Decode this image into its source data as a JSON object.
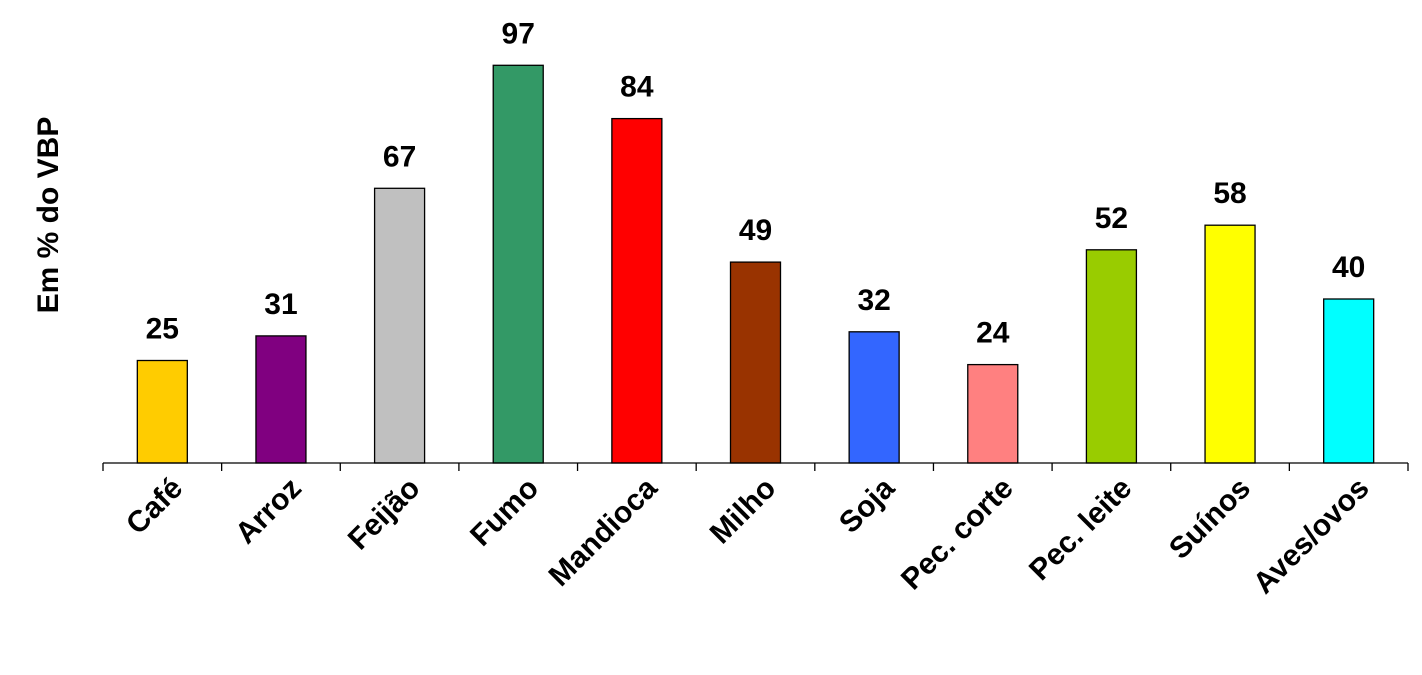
{
  "chart_data": {
    "type": "bar",
    "ylabel": "Em % do VBP",
    "xlabel": "",
    "title": "",
    "categories": [
      "Café",
      "Arroz",
      "Feijão",
      "Fumo",
      "Mandioca",
      "Milho",
      "Soja",
      "Pec. corte",
      "Pec. leite",
      "Suínos",
      "Aves/ovos"
    ],
    "values": [
      25,
      31,
      67,
      97,
      84,
      49,
      32,
      24,
      52,
      58,
      40
    ],
    "colors": [
      "#FFCC00",
      "#800080",
      "#C0C0C0",
      "#339966",
      "#FF0000",
      "#993300",
      "#3366FF",
      "#FF8080",
      "#99CC00",
      "#FFFF00",
      "#00FFFF"
    ],
    "ylim": [
      0,
      100
    ],
    "grid": false,
    "legend": "none",
    "data_labels": true
  }
}
